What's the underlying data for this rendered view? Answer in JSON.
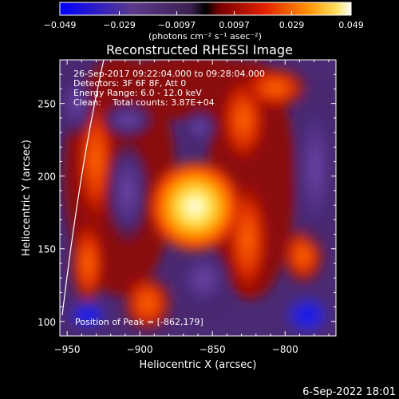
{
  "colorbar": {
    "ticks": [
      "-0.049",
      "-0.029",
      "-0.0097",
      "0.0097",
      "0.029",
      "0.049"
    ],
    "tick_values": [
      -0.049,
      -0.029,
      -0.0097,
      0.0097,
      0.029,
      0.049
    ],
    "range": [
      -0.049,
      0.049
    ],
    "unit_label": "(photons cm⁻² s⁻¹ asec⁻²)",
    "colors": [
      "#0000ff",
      "#5b3a8c",
      "#4a2a6a",
      "#b01010",
      "#ff5000",
      "#ffb000",
      "#ffffff"
    ]
  },
  "chart_data": {
    "type": "heatmap",
    "title": "Reconstructed RHESSI Image",
    "xlabel": "Heliocentric X (arcsec)",
    "ylabel": "Heliocentric Y (arcsec)",
    "xlim": [
      -955,
      -765
    ],
    "ylim": [
      90,
      280
    ],
    "xticks": [
      -950,
      -900,
      -850,
      -800
    ],
    "yticks": [
      100,
      150,
      200,
      250
    ],
    "xtick_labels": [
      "−950",
      "−900",
      "−850",
      "−800"
    ],
    "ytick_labels": [
      "100",
      "150",
      "200",
      "250"
    ],
    "peak": {
      "x": -862,
      "y": 179
    },
    "annotations": [
      "26-Sep-2017 09:22:04.000 to 09:28:04.000",
      "Detectors: 3F 6F 8F, Att 0",
      "Energy Range: 6.0 - 12.0 keV",
      "Clean:    Total counts: 3.87E+04"
    ],
    "peak_label": "Position of Peak = [-862,179]",
    "grid": false
  },
  "footer": {
    "date": "6-Sep-2022 18:01"
  }
}
